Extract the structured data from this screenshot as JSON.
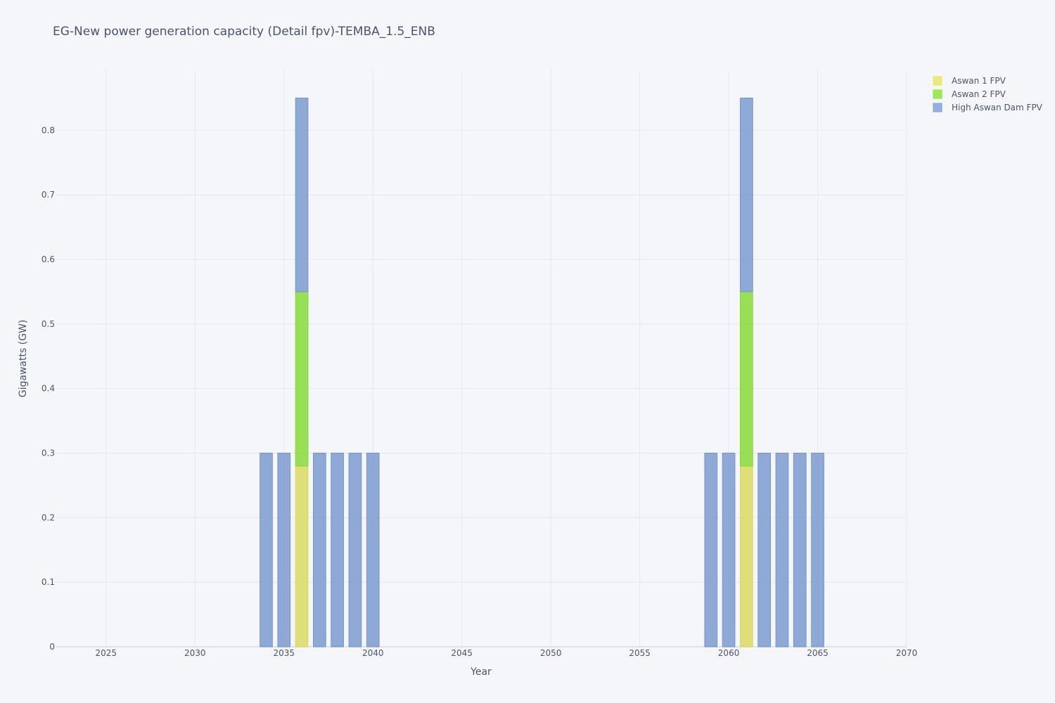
{
  "chart_data": {
    "type": "bar",
    "stacked": true,
    "title": "EG-New power generation capacity (Detail fpv)-TEMBA_1.5_ENB",
    "xlabel": "Year",
    "ylabel": "Gigawatts (GW)",
    "xlim": [
      2022.2,
      2070
    ],
    "ylim": [
      0,
      0.893
    ],
    "xticks": [
      2025,
      2030,
      2035,
      2040,
      2045,
      2050,
      2055,
      2060,
      2065,
      2070
    ],
    "yticks": [
      0,
      0.1,
      0.2,
      0.3,
      0.4,
      0.5,
      0.6,
      0.7,
      0.8
    ],
    "ytick_labels": [
      "0",
      "0.1",
      "0.2",
      "0.3",
      "0.4",
      "0.5",
      "0.6",
      "0.7",
      "0.8"
    ],
    "grid": true,
    "legend_position": "top-right",
    "series": [
      {
        "name": "Aswan 1 FPV",
        "color": "#ffff66",
        "points": [
          {
            "x": 2036,
            "y": 0.28
          },
          {
            "x": 2061,
            "y": 0.28
          }
        ]
      },
      {
        "name": "Aswan 2 FPV",
        "color": "#99ff33",
        "points": [
          {
            "x": 2036,
            "y": 0.27
          },
          {
            "x": 2061,
            "y": 0.27
          }
        ]
      },
      {
        "name": "High Aswan Dam FPV",
        "color": "#8ab0f0",
        "points": [
          {
            "x": 2034,
            "y": 0.3
          },
          {
            "x": 2035,
            "y": 0.3
          },
          {
            "x": 2036,
            "y": 0.3
          },
          {
            "x": 2037,
            "y": 0.3
          },
          {
            "x": 2038,
            "y": 0.3
          },
          {
            "x": 2039,
            "y": 0.3
          },
          {
            "x": 2040,
            "y": 0.3
          },
          {
            "x": 2059,
            "y": 0.3
          },
          {
            "x": 2060,
            "y": 0.3
          },
          {
            "x": 2061,
            "y": 0.3
          },
          {
            "x": 2062,
            "y": 0.3
          },
          {
            "x": 2063,
            "y": 0.3
          },
          {
            "x": 2064,
            "y": 0.3
          },
          {
            "x": 2065,
            "y": 0.3
          }
        ]
      }
    ]
  }
}
